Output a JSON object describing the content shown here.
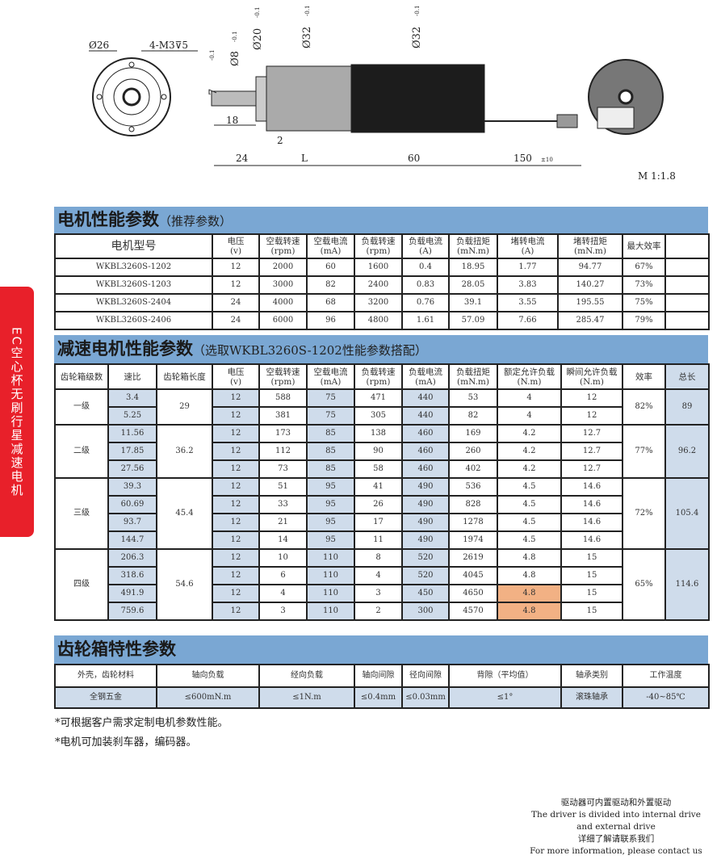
{
  "drawing": {
    "dims": {
      "d26": "Ø26",
      "m3": "4-M3⊽5",
      "d8": "Ø8",
      "d20": "Ø20",
      "d32a": "Ø32",
      "d32b": "Ø32",
      "tol": "-0.1",
      "zero": "0",
      "seven": "7",
      "l18": "18",
      "l2": "2",
      "l24": "24",
      "lL": "L",
      "l60": "60",
      "l150": "150",
      "tol150": "±10"
    },
    "scale": "M 1:1.8"
  },
  "side_tab": "EC空心杯无刷行星减速电机",
  "motor": {
    "title": "电机性能参数",
    "subtitle": "（推荐参数）",
    "headers": [
      [
        "电机型号",
        ""
      ],
      [
        "电压",
        "(v)"
      ],
      [
        "空载转速",
        "(rpm)"
      ],
      [
        "空载电流",
        "(mA)"
      ],
      [
        "负载转速",
        "(rpm)"
      ],
      [
        "负载电流",
        "(A)"
      ],
      [
        "负载扭矩",
        "(mN.m)"
      ],
      [
        "堵转电流",
        "(A)"
      ],
      [
        "堵转扭矩",
        "(mN.m)"
      ],
      [
        "最大效率",
        ""
      ],
      [
        "",
        ""
      ]
    ],
    "rows": [
      [
        "WKBL3260S-1202",
        "12",
        "2000",
        "60",
        "1600",
        "0.4",
        "18.95",
        "1.77",
        "94.77",
        "67%",
        ""
      ],
      [
        "WKBL3260S-1203",
        "12",
        "3000",
        "82",
        "2400",
        "0.83",
        "28.05",
        "3.83",
        "140.27",
        "73%",
        ""
      ],
      [
        "WKBL3260S-2404",
        "24",
        "4000",
        "68",
        "3200",
        "0.76",
        "39.1",
        "3.55",
        "195.55",
        "75%",
        ""
      ],
      [
        "WKBL3260S-2406",
        "24",
        "6000",
        "96",
        "4800",
        "1.61",
        "57.09",
        "7.66",
        "285.47",
        "79%",
        ""
      ]
    ]
  },
  "gear": {
    "title": "减速电机性能参数",
    "subtitle": "（选取WKBL3260S-1202性能参数搭配）",
    "headers": [
      [
        "齿轮箱级数",
        ""
      ],
      [
        "速比",
        ""
      ],
      [
        "齿轮箱长度",
        ""
      ],
      [
        "电压",
        "(v)"
      ],
      [
        "空载转速",
        "(rpm)"
      ],
      [
        "空载电流",
        "(mA)"
      ],
      [
        "负载转速",
        "(rpm)"
      ],
      [
        "负载电流",
        "(mA)"
      ],
      [
        "负载扭矩",
        "(mN.m)"
      ],
      [
        "额定允许负载",
        "(N.m)"
      ],
      [
        "瞬间允许负载",
        "(N.m)"
      ],
      [
        "效率",
        ""
      ],
      [
        "总长",
        ""
      ]
    ],
    "groups": [
      {
        "stage": "一级",
        "length": "29",
        "efficiency": "82%",
        "total": "89",
        "rows": [
          [
            "3.4",
            "12",
            "588",
            "75",
            "471",
            "440",
            "53",
            "4",
            "12"
          ],
          [
            "5.25",
            "12",
            "381",
            "75",
            "305",
            "440",
            "82",
            "4",
            "12"
          ]
        ]
      },
      {
        "stage": "二级",
        "length": "36.2",
        "efficiency": "77%",
        "total": "96.2",
        "rows": [
          [
            "11.56",
            "12",
            "173",
            "85",
            "138",
            "460",
            "169",
            "4.2",
            "12.7"
          ],
          [
            "17.85",
            "12",
            "112",
            "85",
            "90",
            "460",
            "260",
            "4.2",
            "12.7"
          ],
          [
            "27.56",
            "12",
            "73",
            "85",
            "58",
            "460",
            "402",
            "4.2",
            "12.7"
          ]
        ]
      },
      {
        "stage": "三级",
        "length": "45.4",
        "efficiency": "72%",
        "total": "105.4",
        "rows": [
          [
            "39.3",
            "12",
            "51",
            "95",
            "41",
            "490",
            "536",
            "4.5",
            "14.6"
          ],
          [
            "60.69",
            "12",
            "33",
            "95",
            "26",
            "490",
            "828",
            "4.5",
            "14.6"
          ],
          [
            "93.7",
            "12",
            "21",
            "95",
            "17",
            "490",
            "1278",
            "4.5",
            "14.6"
          ],
          [
            "144.7",
            "12",
            "14",
            "95",
            "11",
            "490",
            "1974",
            "4.5",
            "14.6"
          ]
        ]
      },
      {
        "stage": "四级",
        "length": "54.6",
        "efficiency": "65%",
        "total": "114.6",
        "rows": [
          [
            "206.3",
            "12",
            "10",
            "110",
            "8",
            "520",
            "2619",
            "4.8",
            "15"
          ],
          [
            "318.6",
            "12",
            "6",
            "110",
            "4",
            "520",
            "4045",
            "4.8",
            "15"
          ],
          [
            "491.9",
            "12",
            "4",
            "110",
            "3",
            "450",
            "4650",
            "4.8",
            "15"
          ],
          [
            "759.6",
            "12",
            "3",
            "110",
            "2",
            "300",
            "4570",
            "4.8",
            "15"
          ]
        ]
      }
    ],
    "highlight_color": "#f2b184"
  },
  "gearbox": {
    "title": "齿轮箱特性参数",
    "headers": [
      "外壳，齿轮材料",
      "轴向负载",
      "经向负载",
      "轴向间隙",
      "径向间隙",
      "背隙（平均值）",
      "轴承类别",
      "工作温度"
    ],
    "values": [
      "全钢五金",
      "≤600mN.m",
      "≤1N.m",
      "≤0.4mm",
      "≤0.03mm",
      "≤1°",
      "滚珠轴承",
      "-40~85℃"
    ]
  },
  "notes": [
    "*可根据客户需求定制电机参数性能。",
    "*电机可加装刹车器，编码器。"
  ],
  "contact": [
    "驱动器可内置驱动和外置驱动",
    "The driver is divided into internal drive",
    "and external drive",
    "详细了解请联系我们",
    "For more information, please contact us"
  ],
  "colors": {
    "header_band": "#7aa7d3",
    "cell_blue": "#cfdceb",
    "side_tab": "#e8202a"
  }
}
